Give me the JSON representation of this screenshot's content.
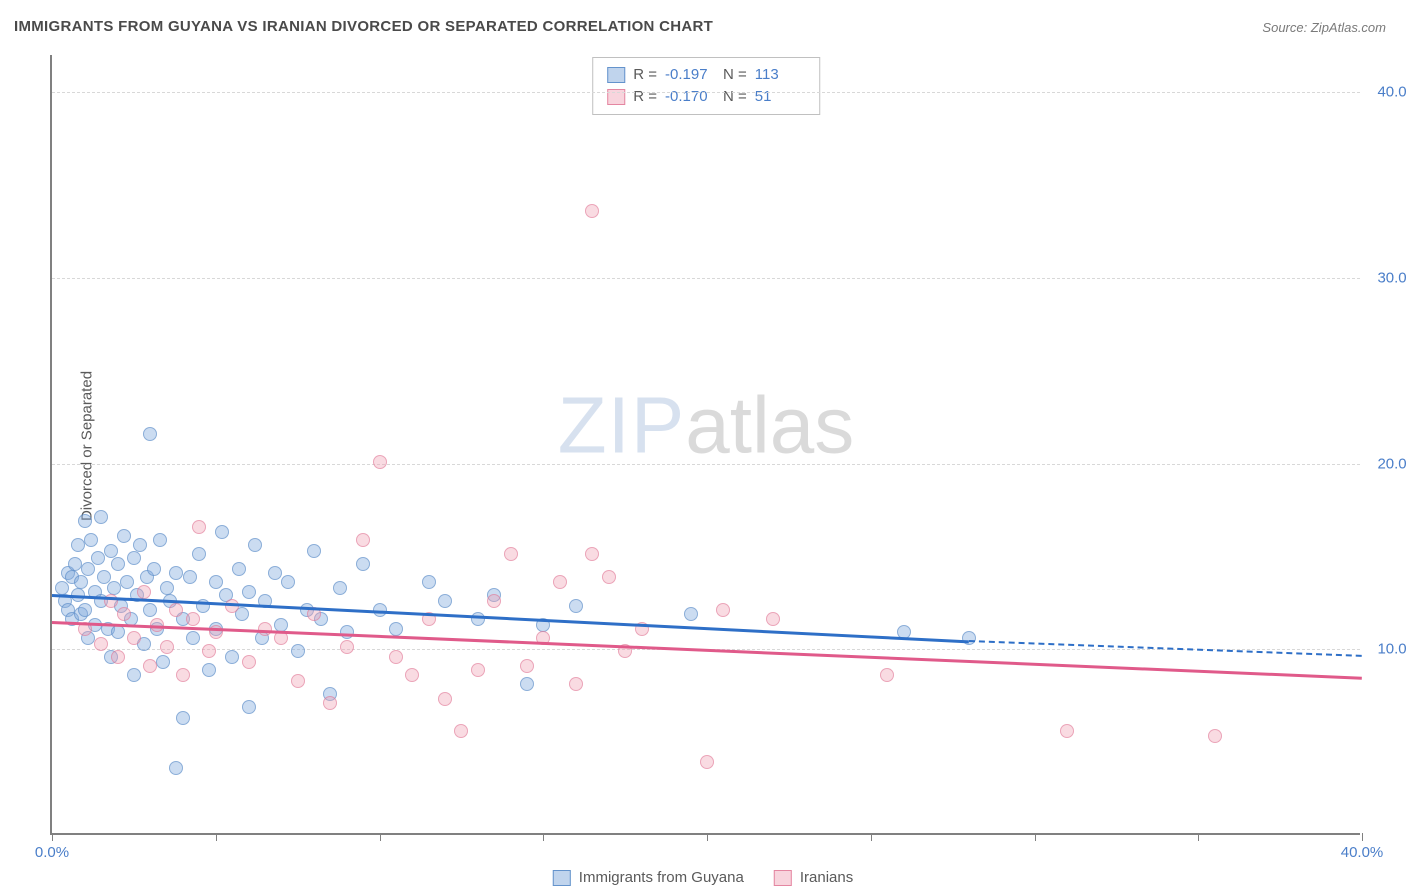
{
  "title": "IMMIGRANTS FROM GUYANA VS IRANIAN DIVORCED OR SEPARATED CORRELATION CHART",
  "source_label": "Source:",
  "source_name": "ZipAtlas.com",
  "watermark_zip": "ZIP",
  "watermark_atlas": "atlas",
  "y_axis_label": "Divorced or Separated",
  "chart": {
    "type": "scatter",
    "xlim": [
      0,
      40
    ],
    "ylim": [
      0,
      42
    ],
    "x_ticks": [
      0,
      5,
      10,
      15,
      20,
      25,
      30,
      35,
      40
    ],
    "x_tick_labels": {
      "0": "0.0%",
      "40": "40.0%"
    },
    "y_gridlines": [
      10,
      20,
      30,
      40
    ],
    "y_tick_labels": {
      "10": "10.0%",
      "20": "20.0%",
      "30": "30.0%",
      "40": "40.0%"
    },
    "gridline_color": "#d8d8d8",
    "axis_color": "#808080",
    "tick_label_color": "#4a7ec9",
    "background_color": "#ffffff",
    "point_radius": 7,
    "series": [
      {
        "id": "s1",
        "label": "Immigrants from Guyana",
        "fill_color": "rgba(130,170,220,0.55)",
        "stroke_color": "rgba(90,140,200,0.9)",
        "R": "-0.197",
        "N": "113",
        "trendline": {
          "color": "#2e6fc7",
          "width": 2.5,
          "start": {
            "x": 0,
            "y": 13.0
          },
          "solid_end": {
            "x": 28,
            "y": 10.5
          },
          "dash_end": {
            "x": 40,
            "y": 9.7
          }
        },
        "points": [
          {
            "x": 0.3,
            "y": 13.2
          },
          {
            "x": 0.4,
            "y": 12.5
          },
          {
            "x": 0.5,
            "y": 14.0
          },
          {
            "x": 0.5,
            "y": 12.0
          },
          {
            "x": 0.6,
            "y": 13.8
          },
          {
            "x": 0.6,
            "y": 11.5
          },
          {
            "x": 0.7,
            "y": 14.5
          },
          {
            "x": 0.8,
            "y": 12.8
          },
          {
            "x": 0.8,
            "y": 15.5
          },
          {
            "x": 0.9,
            "y": 13.5
          },
          {
            "x": 0.9,
            "y": 11.8
          },
          {
            "x": 1.0,
            "y": 16.8
          },
          {
            "x": 1.0,
            "y": 12.0
          },
          {
            "x": 1.1,
            "y": 14.2
          },
          {
            "x": 1.1,
            "y": 10.5
          },
          {
            "x": 1.2,
            "y": 15.8
          },
          {
            "x": 1.3,
            "y": 13.0
          },
          {
            "x": 1.3,
            "y": 11.2
          },
          {
            "x": 1.4,
            "y": 14.8
          },
          {
            "x": 1.5,
            "y": 12.5
          },
          {
            "x": 1.5,
            "y": 17.0
          },
          {
            "x": 1.6,
            "y": 13.8
          },
          {
            "x": 1.7,
            "y": 11.0
          },
          {
            "x": 1.8,
            "y": 15.2
          },
          {
            "x": 1.8,
            "y": 9.5
          },
          {
            "x": 1.9,
            "y": 13.2
          },
          {
            "x": 2.0,
            "y": 14.5
          },
          {
            "x": 2.0,
            "y": 10.8
          },
          {
            "x": 2.1,
            "y": 12.2
          },
          {
            "x": 2.2,
            "y": 16.0
          },
          {
            "x": 2.3,
            "y": 13.5
          },
          {
            "x": 2.4,
            "y": 11.5
          },
          {
            "x": 2.5,
            "y": 14.8
          },
          {
            "x": 2.5,
            "y": 8.5
          },
          {
            "x": 2.6,
            "y": 12.8
          },
          {
            "x": 2.7,
            "y": 15.5
          },
          {
            "x": 2.8,
            "y": 10.2
          },
          {
            "x": 2.9,
            "y": 13.8
          },
          {
            "x": 3.0,
            "y": 21.5
          },
          {
            "x": 3.0,
            "y": 12.0
          },
          {
            "x": 3.1,
            "y": 14.2
          },
          {
            "x": 3.2,
            "y": 11.0
          },
          {
            "x": 3.3,
            "y": 15.8
          },
          {
            "x": 3.4,
            "y": 9.2
          },
          {
            "x": 3.5,
            "y": 13.2
          },
          {
            "x": 3.6,
            "y": 12.5
          },
          {
            "x": 3.8,
            "y": 3.5
          },
          {
            "x": 3.8,
            "y": 14.0
          },
          {
            "x": 4.0,
            "y": 11.5
          },
          {
            "x": 4.0,
            "y": 6.2
          },
          {
            "x": 4.2,
            "y": 13.8
          },
          {
            "x": 4.3,
            "y": 10.5
          },
          {
            "x": 4.5,
            "y": 15.0
          },
          {
            "x": 4.6,
            "y": 12.2
          },
          {
            "x": 4.8,
            "y": 8.8
          },
          {
            "x": 5.0,
            "y": 13.5
          },
          {
            "x": 5.0,
            "y": 11.0
          },
          {
            "x": 5.2,
            "y": 16.2
          },
          {
            "x": 5.3,
            "y": 12.8
          },
          {
            "x": 5.5,
            "y": 9.5
          },
          {
            "x": 5.7,
            "y": 14.2
          },
          {
            "x": 5.8,
            "y": 11.8
          },
          {
            "x": 6.0,
            "y": 13.0
          },
          {
            "x": 6.0,
            "y": 6.8
          },
          {
            "x": 6.2,
            "y": 15.5
          },
          {
            "x": 6.4,
            "y": 10.5
          },
          {
            "x": 6.5,
            "y": 12.5
          },
          {
            "x": 6.8,
            "y": 14.0
          },
          {
            "x": 7.0,
            "y": 11.2
          },
          {
            "x": 7.2,
            "y": 13.5
          },
          {
            "x": 7.5,
            "y": 9.8
          },
          {
            "x": 7.8,
            "y": 12.0
          },
          {
            "x": 8.0,
            "y": 15.2
          },
          {
            "x": 8.2,
            "y": 11.5
          },
          {
            "x": 8.5,
            "y": 7.5
          },
          {
            "x": 8.8,
            "y": 13.2
          },
          {
            "x": 9.0,
            "y": 10.8
          },
          {
            "x": 9.5,
            "y": 14.5
          },
          {
            "x": 10.0,
            "y": 12.0
          },
          {
            "x": 10.5,
            "y": 11.0
          },
          {
            "x": 11.5,
            "y": 13.5
          },
          {
            "x": 12.0,
            "y": 12.5
          },
          {
            "x": 13.0,
            "y": 11.5
          },
          {
            "x": 13.5,
            "y": 12.8
          },
          {
            "x": 14.5,
            "y": 8.0
          },
          {
            "x": 15.0,
            "y": 11.2
          },
          {
            "x": 16.0,
            "y": 12.2
          },
          {
            "x": 19.5,
            "y": 11.8
          },
          {
            "x": 26.0,
            "y": 10.8
          },
          {
            "x": 28.0,
            "y": 10.5
          }
        ]
      },
      {
        "id": "s2",
        "label": "Iranians",
        "fill_color": "rgba(240,160,180,0.5)",
        "stroke_color": "rgba(225,120,150,0.85)",
        "R": "-0.170",
        "N": "51",
        "trendline": {
          "color": "#e05a8a",
          "width": 2.5,
          "start": {
            "x": 0,
            "y": 11.5
          },
          "solid_end": {
            "x": 40,
            "y": 8.5
          },
          "dash_end": null
        },
        "points": [
          {
            "x": 1.0,
            "y": 11.0
          },
          {
            "x": 1.5,
            "y": 10.2
          },
          {
            "x": 1.8,
            "y": 12.5
          },
          {
            "x": 2.0,
            "y": 9.5
          },
          {
            "x": 2.2,
            "y": 11.8
          },
          {
            "x": 2.5,
            "y": 10.5
          },
          {
            "x": 2.8,
            "y": 13.0
          },
          {
            "x": 3.0,
            "y": 9.0
          },
          {
            "x": 3.2,
            "y": 11.2
          },
          {
            "x": 3.5,
            "y": 10.0
          },
          {
            "x": 3.8,
            "y": 12.0
          },
          {
            "x": 4.0,
            "y": 8.5
          },
          {
            "x": 4.3,
            "y": 11.5
          },
          {
            "x": 4.5,
            "y": 16.5
          },
          {
            "x": 4.8,
            "y": 9.8
          },
          {
            "x": 5.0,
            "y": 10.8
          },
          {
            "x": 5.5,
            "y": 12.2
          },
          {
            "x": 6.0,
            "y": 9.2
          },
          {
            "x": 6.5,
            "y": 11.0
          },
          {
            "x": 7.0,
            "y": 10.5
          },
          {
            "x": 7.5,
            "y": 8.2
          },
          {
            "x": 8.0,
            "y": 11.8
          },
          {
            "x": 8.5,
            "y": 7.0
          },
          {
            "x": 9.0,
            "y": 10.0
          },
          {
            "x": 9.5,
            "y": 15.8
          },
          {
            "x": 10.0,
            "y": 20.0
          },
          {
            "x": 10.5,
            "y": 9.5
          },
          {
            "x": 11.0,
            "y": 8.5
          },
          {
            "x": 11.5,
            "y": 11.5
          },
          {
            "x": 12.0,
            "y": 7.2
          },
          {
            "x": 12.5,
            "y": 5.5
          },
          {
            "x": 13.0,
            "y": 8.8
          },
          {
            "x": 13.5,
            "y": 12.5
          },
          {
            "x": 14.0,
            "y": 15.0
          },
          {
            "x": 14.5,
            "y": 9.0
          },
          {
            "x": 15.0,
            "y": 10.5
          },
          {
            "x": 15.5,
            "y": 13.5
          },
          {
            "x": 16.0,
            "y": 8.0
          },
          {
            "x": 16.5,
            "y": 15.0
          },
          {
            "x": 16.5,
            "y": 33.5
          },
          {
            "x": 17.0,
            "y": 13.8
          },
          {
            "x": 17.5,
            "y": 9.8
          },
          {
            "x": 18.0,
            "y": 11.0
          },
          {
            "x": 20.0,
            "y": 3.8
          },
          {
            "x": 20.5,
            "y": 12.0
          },
          {
            "x": 22.0,
            "y": 11.5
          },
          {
            "x": 25.5,
            "y": 8.5
          },
          {
            "x": 31.0,
            "y": 5.5
          },
          {
            "x": 35.5,
            "y": 5.2
          }
        ]
      }
    ]
  },
  "legend_top": {
    "R_label": "R =",
    "N_label": "N ="
  },
  "legend_bottom_labels": [
    "Immigrants from Guyana",
    "Iranians"
  ]
}
